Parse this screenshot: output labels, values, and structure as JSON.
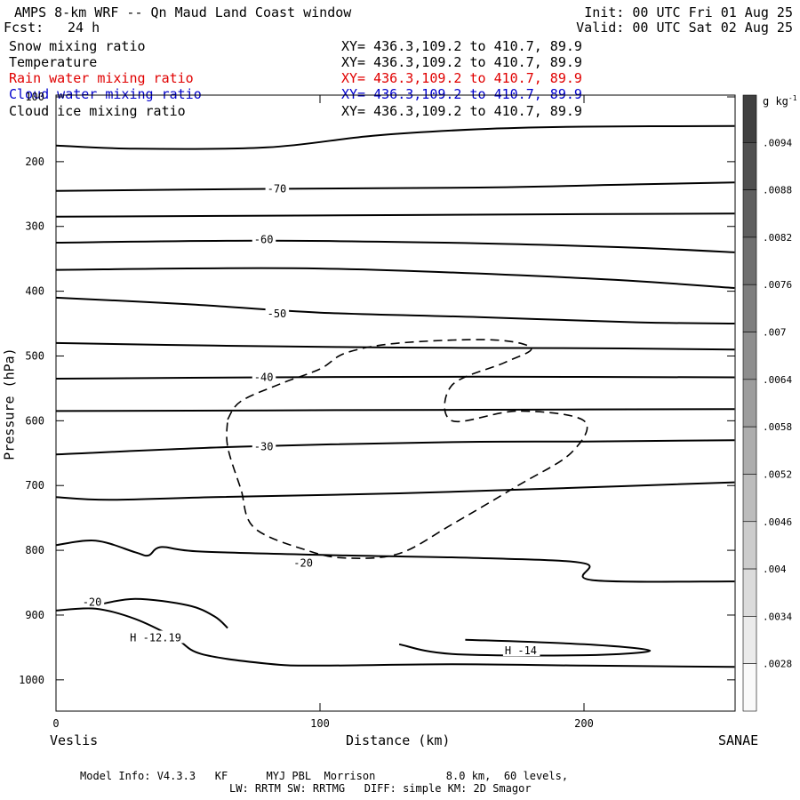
{
  "header": {
    "title": "AMPS 8-km WRF -- Qn Maud Land Coast window",
    "forecast_label": "Fcst:",
    "forecast_value": "24 h",
    "init": "Init: 00 UTC Fri 01 Aug 25",
    "valid": "Valid: 00 UTC Sat 02 Aug 25"
  },
  "fields": [
    {
      "name": "Snow mixing ratio",
      "xy": "XY= 436.3,109.2 to 410.7, 89.9",
      "color": "#000000"
    },
    {
      "name": "Temperature",
      "xy": "XY= 436.3,109.2 to 410.7, 89.9",
      "color": "#000000"
    },
    {
      "name": "Rain water mixing ratio",
      "xy": "XY= 436.3,109.2 to 410.7, 89.9",
      "color": "#e00000"
    },
    {
      "name": "Cloud water mixing ratio",
      "xy": "XY= 436.3,109.2 to 410.7, 89.9",
      "color": "#0000cc"
    },
    {
      "name": "Cloud ice mixing ratio",
      "xy": "XY= 436.3,109.2 to 410.7, 89.9",
      "color": "#000000"
    }
  ],
  "footer": {
    "line1": "Model Info: V4.3.3   KF      MYJ PBL  Morrison           8.0 km,  60 levels,",
    "line2": "LW: RRTM SW: RRTMG   DIFF: simple KM: 2D Smagor"
  },
  "chart_data": {
    "type": "contour",
    "xlabel": "Distance (km)",
    "ylabel": "Pressure (hPa)",
    "xlim": [
      0,
      257
    ],
    "ylim": [
      100,
      1050
    ],
    "x_ticks": [
      0,
      100,
      200
    ],
    "y_ticks": [
      100,
      200,
      300,
      400,
      500,
      600,
      700,
      800,
      900,
      1000
    ],
    "x_start_label": "Veslis",
    "x_end_label": "SANAE",
    "temperature_contours": [
      {
        "points": [
          [
            0,
            175
          ],
          [
            30,
            180
          ],
          [
            80,
            178
          ],
          [
            120,
            160
          ],
          [
            160,
            150
          ],
          [
            200,
            146
          ],
          [
            257,
            145
          ]
        ]
      },
      {
        "points": [
          [
            0,
            245
          ],
          [
            80,
            242
          ],
          [
            160,
            240
          ],
          [
            220,
            235
          ],
          [
            257,
            232
          ]
        ],
        "label": "-70",
        "label_at": [
          80,
          242
        ]
      },
      {
        "points": [
          [
            0,
            285
          ],
          [
            100,
            283
          ],
          [
            200,
            281
          ],
          [
            257,
            280
          ]
        ]
      },
      {
        "points": [
          [
            0,
            325
          ],
          [
            80,
            322
          ],
          [
            160,
            326
          ],
          [
            220,
            333
          ],
          [
            257,
            340
          ]
        ],
        "label": "-60",
        "label_at": [
          75,
          320
        ]
      },
      {
        "points": [
          [
            0,
            367
          ],
          [
            100,
            365
          ],
          [
            200,
            380
          ],
          [
            257,
            395
          ]
        ]
      },
      {
        "points": [
          [
            0,
            410
          ],
          [
            50,
            420
          ],
          [
            100,
            433
          ],
          [
            160,
            440
          ],
          [
            220,
            448
          ],
          [
            257,
            450
          ]
        ],
        "label": "-50",
        "label_at": [
          80,
          435
        ]
      },
      {
        "points": [
          [
            0,
            480
          ],
          [
            60,
            484
          ],
          [
            130,
            487
          ],
          [
            200,
            488
          ],
          [
            257,
            490
          ]
        ]
      },
      {
        "points": [
          [
            0,
            535
          ],
          [
            80,
            533
          ],
          [
            160,
            532
          ],
          [
            257,
            533
          ]
        ],
        "label": "-40",
        "label_at": [
          75,
          533
        ]
      },
      {
        "points": [
          [
            0,
            585
          ],
          [
            80,
            584
          ],
          [
            160,
            583
          ],
          [
            257,
            582
          ]
        ]
      },
      {
        "points": [
          [
            0,
            652
          ],
          [
            70,
            640
          ],
          [
            150,
            633
          ],
          [
            200,
            632
          ],
          [
            257,
            630
          ]
        ],
        "label": "-30",
        "label_at": [
          75,
          640
        ]
      },
      {
        "points": [
          [
            0,
            718
          ],
          [
            20,
            722
          ],
          [
            60,
            718
          ],
          [
            130,
            712
          ],
          [
            200,
            703
          ],
          [
            257,
            695
          ]
        ]
      },
      {
        "points": [
          [
            0,
            792
          ],
          [
            15,
            785
          ],
          [
            30,
            803
          ],
          [
            35,
            808
          ],
          [
            40,
            795
          ],
          [
            55,
            802
          ],
          [
            110,
            808
          ],
          [
            160,
            812
          ],
          [
            200,
            820
          ],
          [
            203,
            846
          ],
          [
            257,
            848
          ]
        ],
        "label": "-20",
        "label_at": [
          90,
          820
        ]
      },
      {
        "points": [
          [
            0,
            893
          ],
          [
            15,
            890
          ],
          [
            30,
            906
          ],
          [
            45,
            935
          ],
          [
            55,
            960
          ],
          [
            80,
            975
          ],
          [
            100,
            978
          ],
          [
            150,
            976
          ],
          [
            200,
            978
          ],
          [
            257,
            980
          ]
        ],
        "label": "-20",
        "label_at": [
          10,
          880
        ]
      },
      {
        "points": [
          [
            15,
            885
          ],
          [
            30,
            875
          ],
          [
            50,
            885
          ],
          [
            60,
            902
          ],
          [
            65,
            920
          ]
        ],
        "label": "H -12.19",
        "label_at": [
          28,
          935
        ]
      },
      {
        "points": [
          [
            130,
            945
          ],
          [
            150,
            960
          ],
          [
            200,
            962
          ],
          [
            225,
            955
          ],
          [
            200,
            945
          ],
          [
            155,
            938
          ]
        ],
        "label": "H -14",
        "label_at": [
          170,
          955
        ]
      }
    ],
    "snow_contour_dashed": [
      [
        65,
        598
      ],
      [
        70,
        570
      ],
      [
        85,
        543
      ],
      [
        100,
        520
      ],
      [
        110,
        495
      ],
      [
        130,
        480
      ],
      [
        165,
        475
      ],
      [
        180,
        488
      ],
      [
        170,
        510
      ],
      [
        150,
        545
      ],
      [
        150,
        600
      ],
      [
        175,
        585
      ],
      [
        200,
        600
      ],
      [
        195,
        650
      ],
      [
        175,
        700
      ],
      [
        150,
        760
      ],
      [
        130,
        805
      ],
      [
        110,
        812
      ],
      [
        95,
        800
      ],
      [
        75,
        765
      ],
      [
        70,
        705
      ],
      [
        65,
        640
      ],
      [
        65,
        598
      ]
    ],
    "colorbar": {
      "unit": "g kg",
      "unit_exp": "-1",
      "labels": [
        ".0094",
        ".0088",
        ".0082",
        ".0076",
        ".007",
        ".0064",
        ".0058",
        ".0052",
        ".0046",
        ".004",
        ".0034",
        ".0028"
      ]
    }
  }
}
